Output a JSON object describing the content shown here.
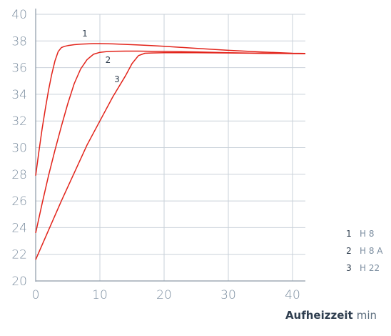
{
  "chart_data": {
    "type": "line",
    "xlabel": "Aufheizzeit",
    "xunit": "min",
    "xlim": [
      0,
      42
    ],
    "ylim": [
      20,
      40
    ],
    "xticks": [
      0,
      10,
      20,
      30,
      40
    ],
    "yticks": [
      20,
      22,
      24,
      26,
      28,
      30,
      32,
      34,
      36,
      38,
      40
    ],
    "grid": true,
    "legend_position": "bottom-right",
    "line_color": "#e2231a",
    "grid_color": "#c9d1d9",
    "series": [
      {
        "label": "1",
        "name": "H 8",
        "x": [
          0,
          0.5,
          1,
          1.5,
          2,
          2.5,
          3,
          3.5,
          4,
          4.5,
          5,
          6,
          7,
          8,
          9,
          10,
          12,
          14,
          16,
          18,
          20,
          25,
          30,
          35,
          40,
          42
        ],
        "y": [
          27.9,
          29.7,
          31.4,
          32.9,
          34.3,
          35.5,
          36.5,
          37.2,
          37.5,
          37.6,
          37.65,
          37.72,
          37.76,
          37.78,
          37.8,
          37.8,
          37.78,
          37.74,
          37.7,
          37.65,
          37.6,
          37.45,
          37.3,
          37.18,
          37.08,
          37.06
        ]
      },
      {
        "label": "2",
        "name": "H 8 A",
        "x": [
          0,
          1,
          2,
          3,
          4,
          5,
          6,
          7,
          8,
          9,
          10,
          11,
          12,
          14,
          16,
          18,
          20,
          25,
          30,
          35,
          40,
          42
        ],
        "y": [
          23.6,
          25.8,
          27.9,
          29.8,
          31.6,
          33.3,
          34.8,
          35.9,
          36.6,
          37.0,
          37.15,
          37.2,
          37.22,
          37.24,
          37.24,
          37.23,
          37.22,
          37.18,
          37.12,
          37.08,
          37.05,
          37.05
        ]
      },
      {
        "label": "3",
        "name": "H 22",
        "x": [
          0,
          2,
          4,
          6,
          8,
          10,
          12,
          14,
          15,
          16,
          17,
          18,
          20,
          25,
          30,
          35,
          40,
          42
        ],
        "y": [
          21.6,
          23.8,
          26.0,
          28.1,
          30.2,
          32.0,
          33.8,
          35.4,
          36.3,
          36.9,
          37.08,
          37.1,
          37.12,
          37.12,
          37.1,
          37.08,
          37.06,
          37.05
        ]
      }
    ],
    "curve_label_anchor_x": [
      9,
      11.5,
      14
    ]
  }
}
